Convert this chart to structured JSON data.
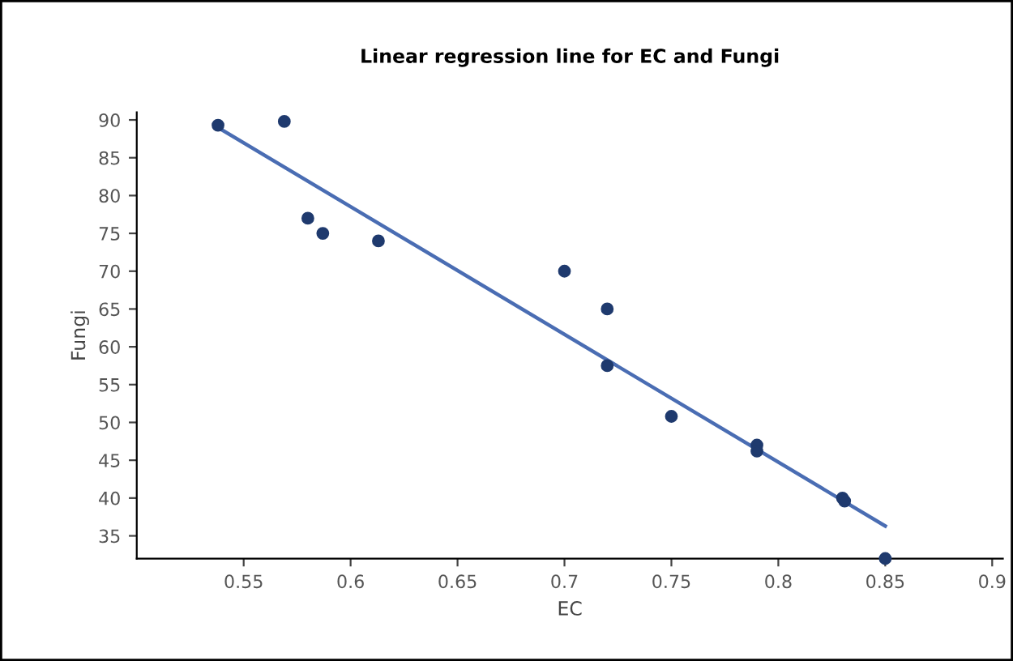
{
  "chart_data": {
    "type": "scatter",
    "title": "Linear regression line for EC and Fungi",
    "xlabel": "EC",
    "ylabel": "Fungi",
    "xlim": [
      0.5,
      0.905
    ],
    "ylim": [
      32,
      91
    ],
    "xticks": [
      0.55,
      0.6,
      0.65,
      0.7,
      0.75,
      0.8,
      0.85,
      0.9
    ],
    "yticks": [
      35,
      40,
      45,
      50,
      55,
      60,
      65,
      70,
      75,
      80,
      85,
      90
    ],
    "grid": false,
    "legend": false,
    "series": [
      {
        "marker": "circle",
        "color": "#1f3a6e",
        "x": [
          0.538,
          0.569,
          0.58,
          0.587,
          0.613,
          0.7,
          0.72,
          0.72,
          0.75,
          0.79,
          0.79,
          0.83,
          0.831,
          0.85
        ],
        "values": [
          89.3,
          89.8,
          77,
          75,
          74,
          70,
          65,
          57.5,
          50.8,
          47,
          46.2,
          40,
          39.6,
          32
        ]
      },
      {
        "type": "line",
        "color": "#4a6db3",
        "line_style": "solid",
        "x": [
          0.538,
          0.85
        ],
        "values": [
          89,
          36.3
        ]
      }
    ]
  }
}
